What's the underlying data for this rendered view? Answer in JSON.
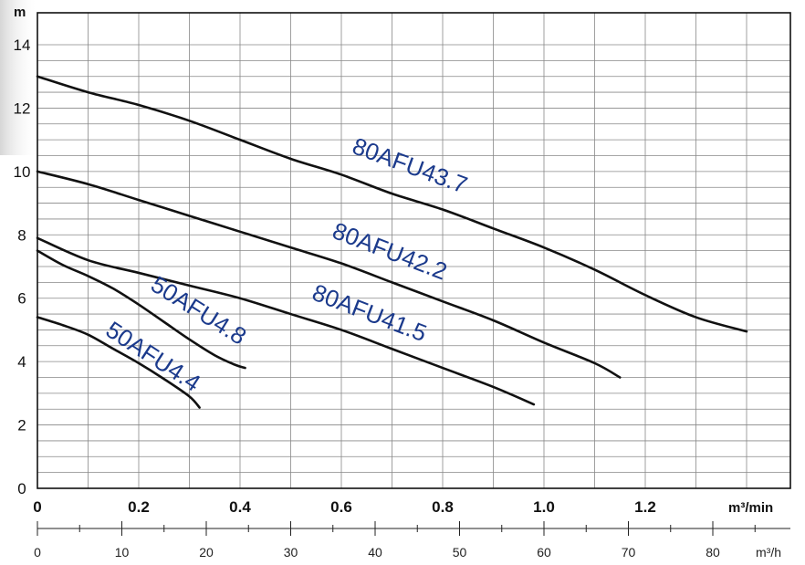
{
  "chart_data": {
    "type": "line",
    "ylabel": "m",
    "xlabel": "m³/min",
    "xlabel_secondary": "m³/h",
    "xlim": [
      0,
      1.5
    ],
    "ylim": [
      0,
      14.5
    ],
    "y_ticks": [
      "0",
      "2",
      "4",
      "6",
      "8",
      "10",
      "12",
      "14"
    ],
    "x_ticks": [
      "0",
      "0.2",
      "0.4",
      "0.6",
      "0.8",
      "1.0",
      "1.2"
    ],
    "x2_ticks": [
      "0",
      "10",
      "20",
      "30",
      "40",
      "50",
      "60",
      "70",
      "80"
    ],
    "grid": true,
    "series": [
      {
        "name": "80AFU43.7",
        "points": [
          [
            0,
            13.0
          ],
          [
            0.1,
            12.5
          ],
          [
            0.2,
            12.1
          ],
          [
            0.3,
            11.6
          ],
          [
            0.4,
            11.0
          ],
          [
            0.5,
            10.4
          ],
          [
            0.6,
            9.9
          ],
          [
            0.7,
            9.3
          ],
          [
            0.8,
            8.8
          ],
          [
            0.9,
            8.2
          ],
          [
            1.0,
            7.6
          ],
          [
            1.1,
            6.9
          ],
          [
            1.2,
            6.1
          ],
          [
            1.3,
            5.4
          ],
          [
            1.4,
            4.95
          ]
        ]
      },
      {
        "name": "80AFU42.2",
        "points": [
          [
            0,
            10.0
          ],
          [
            0.1,
            9.6
          ],
          [
            0.2,
            9.1
          ],
          [
            0.3,
            8.6
          ],
          [
            0.4,
            8.1
          ],
          [
            0.5,
            7.6
          ],
          [
            0.6,
            7.1
          ],
          [
            0.7,
            6.5
          ],
          [
            0.8,
            5.9
          ],
          [
            0.9,
            5.3
          ],
          [
            1.0,
            4.6
          ],
          [
            1.1,
            3.95
          ],
          [
            1.15,
            3.5
          ]
        ]
      },
      {
        "name": "80AFU41.5",
        "points": [
          [
            0,
            7.9
          ],
          [
            0.1,
            7.2
          ],
          [
            0.2,
            6.8
          ],
          [
            0.3,
            6.4
          ],
          [
            0.4,
            6.0
          ],
          [
            0.5,
            5.5
          ],
          [
            0.6,
            5.0
          ],
          [
            0.7,
            4.4
          ],
          [
            0.8,
            3.8
          ],
          [
            0.9,
            3.2
          ],
          [
            0.98,
            2.65
          ]
        ]
      },
      {
        "name": "50AFU4.8",
        "points": [
          [
            0,
            7.5
          ],
          [
            0.05,
            7.05
          ],
          [
            0.1,
            6.7
          ],
          [
            0.15,
            6.3
          ],
          [
            0.2,
            5.8
          ],
          [
            0.25,
            5.25
          ],
          [
            0.3,
            4.7
          ],
          [
            0.35,
            4.2
          ],
          [
            0.39,
            3.9
          ],
          [
            0.41,
            3.8
          ]
        ]
      },
      {
        "name": "50AFU4.4",
        "points": [
          [
            0,
            5.4
          ],
          [
            0.05,
            5.15
          ],
          [
            0.1,
            4.85
          ],
          [
            0.15,
            4.4
          ],
          [
            0.2,
            3.95
          ],
          [
            0.25,
            3.45
          ],
          [
            0.3,
            2.9
          ],
          [
            0.32,
            2.55
          ]
        ]
      }
    ],
    "annotations": [
      {
        "text": "80AFU43.7",
        "x": 0.73,
        "y": 9.95,
        "angle": 20
      },
      {
        "text": "80AFU42.2",
        "x": 0.69,
        "y": 7.25,
        "angle": 21
      },
      {
        "text": "80AFU41.5",
        "x": 0.65,
        "y": 5.3,
        "angle": 21
      },
      {
        "text": "50AFU4.8",
        "x": 0.31,
        "y": 5.4,
        "angle": 32
      },
      {
        "text": "50AFU4.4",
        "x": 0.22,
        "y": 3.95,
        "angle": 33
      }
    ]
  }
}
